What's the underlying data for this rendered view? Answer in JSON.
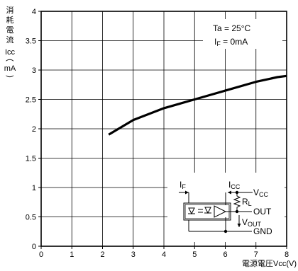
{
  "chart_data": {
    "type": "line",
    "x": [
      2.2,
      3.0,
      4.0,
      5.0,
      6.0,
      7.0,
      7.7,
      8.0
    ],
    "series": [
      {
        "values": [
          1.9,
          2.15,
          2.35,
          2.5,
          2.65,
          2.8,
          2.88,
          2.9
        ]
      }
    ],
    "xlim": [
      0,
      8
    ],
    "ylim": [
      0,
      4
    ],
    "x_ticks": [
      "0",
      "1",
      "2",
      "3",
      "4",
      "5",
      "6",
      "7",
      "8"
    ],
    "y_ticks": [
      "0",
      "0.5",
      "1",
      "1.5",
      "2",
      "2.5",
      "3",
      "3.5",
      "4"
    ],
    "xlabel": "電源電圧Vcc(V)",
    "ylabel_chars": [
      "消",
      "耗",
      "電",
      "流"
    ],
    "ylabel_symbol": "Icc",
    "ylabel_paren_open": "(",
    "ylabel_unit": "mA",
    "ylabel_paren_close": ")",
    "grid": true,
    "annotations": {
      "ta": "Ta = 25°C",
      "if_main": "I",
      "if_sub": "F",
      "if_value": " = 0mA"
    }
  },
  "circuit": {
    "if_main": "I",
    "if_sub": "F",
    "icc_main": "I",
    "icc_sub": "CC",
    "vcc_main": "V",
    "vcc_sub": "CC",
    "rl_main": "R",
    "rl_sub": "L",
    "out": "OUT",
    "vout_main": "V",
    "vout_sub": "OUT",
    "gnd": "GND"
  }
}
